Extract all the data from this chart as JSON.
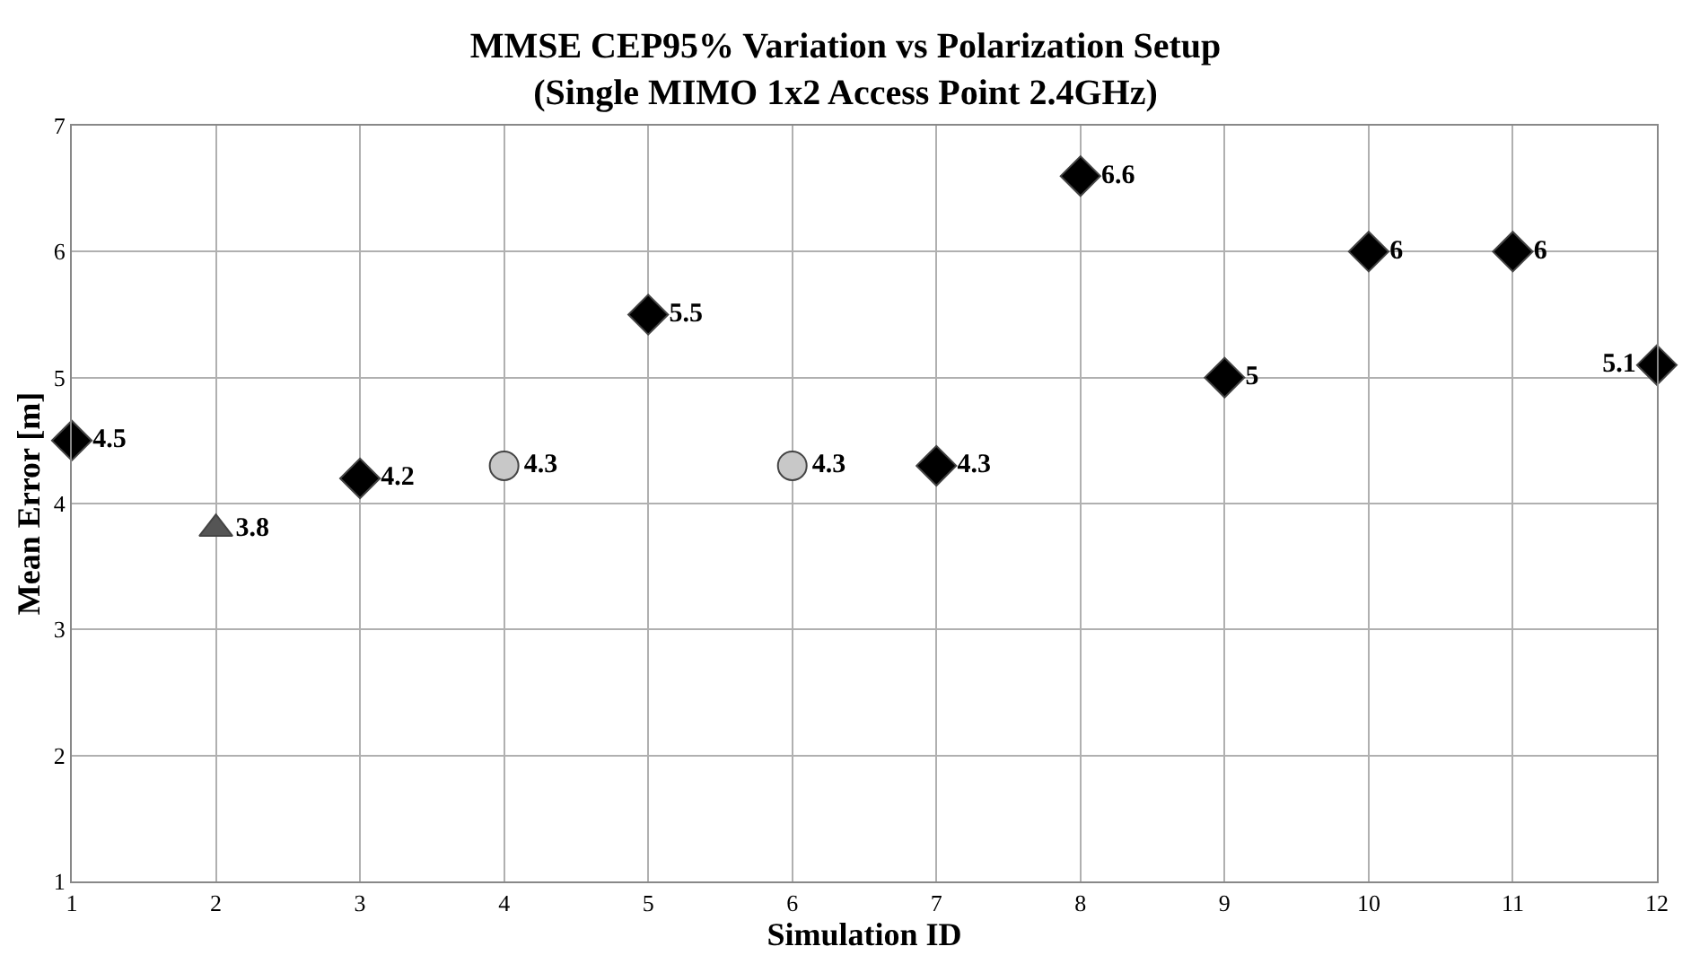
{
  "chart_data": {
    "type": "scatter",
    "title": "MMSE CEP95% Variation vs Polarization Setup\n(Single MIMO 1x2 Access Point 2.4GHz)",
    "xlabel": "Simulation ID",
    "ylabel": "Mean Error [m]",
    "xlim": [
      1,
      12
    ],
    "xticks": [
      1,
      2,
      3,
      4,
      5,
      6,
      7,
      8,
      9,
      10,
      11,
      12
    ],
    "ylim": [
      1,
      7
    ],
    "yticks": [
      1,
      2,
      3,
      4,
      5,
      6,
      7
    ],
    "grid": true,
    "data_labels": true,
    "series": [
      {
        "color": "#000000",
        "marker": "diamond",
        "x": [
          1,
          3,
          5,
          7,
          8,
          9,
          10,
          11,
          12
        ],
        "values": [
          4.5,
          4.2,
          5.5,
          4.3,
          6.6,
          5,
          6,
          6,
          5.1
        ]
      },
      {
        "color": "#555555",
        "marker": "triangle",
        "x": [
          2
        ],
        "values": [
          3.8
        ]
      },
      {
        "color": "#c8c8c8",
        "marker": "circle",
        "x": [
          4,
          6
        ],
        "values": [
          4.3,
          4.3
        ]
      }
    ]
  }
}
